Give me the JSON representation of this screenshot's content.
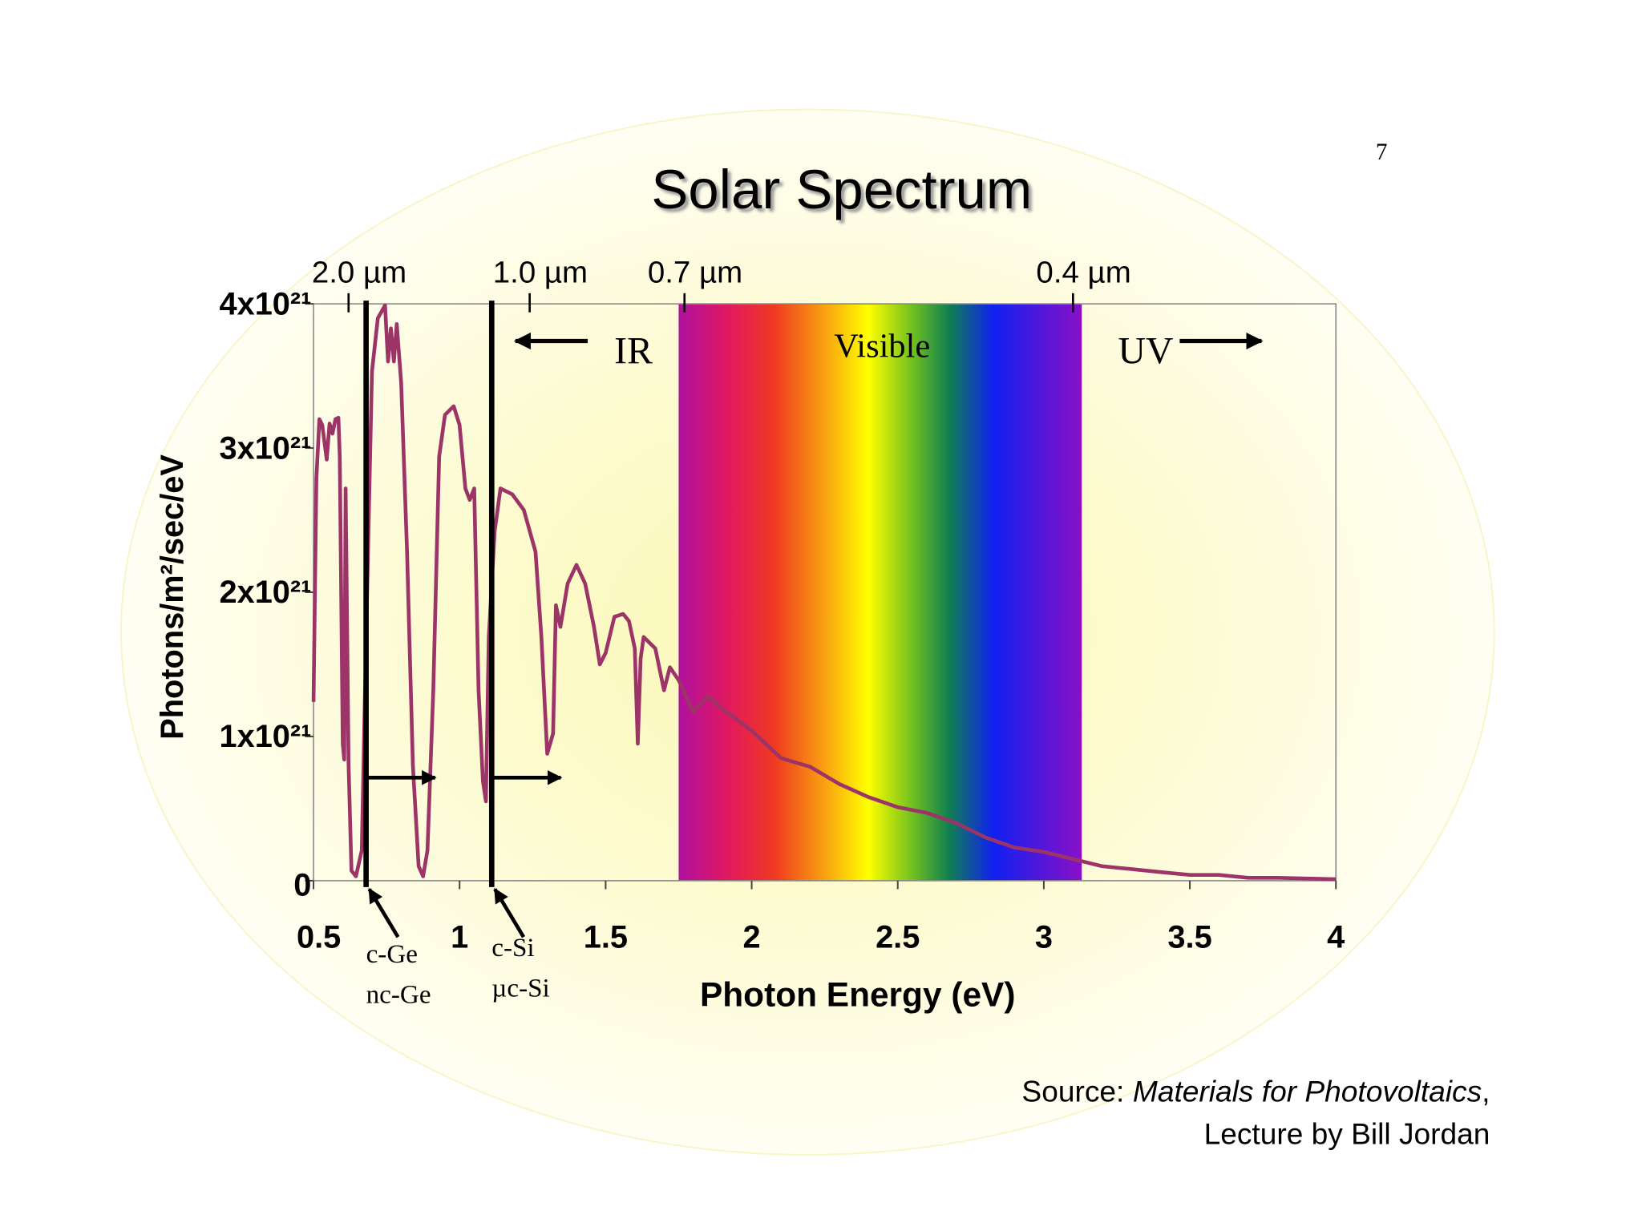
{
  "page_number": "7",
  "chart_data": {
    "type": "line",
    "title": "Solar Spectrum",
    "x_label": "Photon Energy (eV)",
    "y_label": "Photons/m²/sec/eV",
    "xlim": [
      0.5,
      4
    ],
    "xticks": [
      0.5,
      1,
      1.5,
      2,
      2.5,
      3,
      3.5,
      4
    ],
    "ylim": [
      0,
      4e+21
    ],
    "yticks": [
      0,
      {
        "value": 1e+21,
        "label": "1x10²¹"
      },
      {
        "value": 2e+21,
        "label": "2x10²¹"
      },
      {
        "value": 3e+21,
        "label": "3x10²¹"
      },
      {
        "value": 4e+21,
        "label": "4x10²¹"
      }
    ],
    "top_ticks": [
      {
        "value": 0.62,
        "label": "2.0 µm"
      },
      {
        "value": 1.24,
        "label": "1.0 µm"
      },
      {
        "value": 1.77,
        "label": "0.7 µm"
      },
      {
        "value": 3.1,
        "label": "0.4 µm"
      }
    ],
    "x": [
      0.5,
      0.51,
      0.52,
      0.53,
      0.545,
      0.555,
      0.565,
      0.575,
      0.585,
      0.59,
      0.6,
      0.605,
      0.61,
      0.62,
      0.63,
      0.645,
      0.665,
      0.68,
      0.7,
      0.72,
      0.745,
      0.755,
      0.765,
      0.775,
      0.785,
      0.8,
      0.82,
      0.84,
      0.86,
      0.875,
      0.89,
      0.91,
      0.93,
      0.95,
      0.98,
      1.0,
      1.02,
      1.035,
      1.05,
      1.065,
      1.08,
      1.09,
      1.1,
      1.12,
      1.14,
      1.18,
      1.22,
      1.26,
      1.28,
      1.3,
      1.32,
      1.33,
      1.345,
      1.37,
      1.4,
      1.43,
      1.46,
      1.48,
      1.5,
      1.53,
      1.56,
      1.58,
      1.6,
      1.61,
      1.62,
      1.63,
      1.67,
      1.7,
      1.72,
      1.75,
      1.8,
      1.85,
      1.9,
      2.0,
      2.1,
      2.2,
      2.3,
      2.4,
      2.5,
      2.6,
      2.7,
      2.8,
      2.9,
      3.0,
      3.1,
      3.2,
      3.3,
      3.4,
      3.5,
      3.6,
      3.7,
      3.8,
      3.9,
      4.0
    ],
    "series": [
      {
        "color": "#9c3468",
        "values": [
          1.24e+21,
          2.79e+21,
          3.2e+21,
          3.16e+21,
          2.92e+21,
          3.17e+21,
          3.1e+21,
          3.2e+21,
          3.21e+21,
          2.94e+21,
          9.5e+20,
          8.4e+20,
          2.72e+21,
          8e+20,
          7e+19,
          3e+19,
          2.1e+20,
          1.69e+21,
          3.53e+21,
          3.9e+21,
          3.99e+21,
          3.6e+21,
          3.83e+21,
          3.6e+21,
          3.86e+21,
          3.45e+21,
          2.28e+21,
          8e+20,
          1e+20,
          3e+19,
          2.1e+20,
          1.32e+21,
          2.94e+21,
          3.23e+21,
          3.29e+21,
          3.16e+21,
          2.72e+21,
          2.64e+21,
          2.72e+21,
          1.32e+21,
          6.9e+20,
          5.5e+20,
          1.69e+21,
          2.42e+21,
          2.72e+21,
          2.68e+21,
          2.57e+21,
          2.28e+21,
          1.69e+21,
          8.8e+20,
          1.02e+21,
          1.91e+21,
          1.76e+21,
          2.06e+21,
          2.19e+21,
          2.06e+21,
          1.76e+21,
          1.5e+21,
          1.58e+21,
          1.83e+21,
          1.85e+21,
          1.8e+21,
          1.61e+21,
          9.5e+20,
          1.54e+21,
          1.69e+21,
          1.61e+21,
          1.32e+21,
          1.48e+21,
          1.39e+21,
          1.17e+21,
          1.28e+21,
          1.19e+21,
          1.04e+21,
          8.5e+20,
          7.9e+20,
          6.7e+20,
          5.8e+20,
          5.1e+20,
          4.7e+20,
          4e+20,
          3e+20,
          2.3e+20,
          2e+20,
          1.5e+20,
          1e+20,
          8e+19,
          6e+19,
          4e+19,
          4e+19,
          2e+19,
          2e+19,
          1.5e+19,
          1e+19
        ]
      }
    ],
    "visible_range": [
      1.75,
      3.13
    ],
    "regions": [
      "IR",
      "Visible",
      "UV"
    ],
    "bandgaps": [
      {
        "x": 0.68,
        "labels": [
          "c-Ge",
          "nc-Ge"
        ]
      },
      {
        "x": 1.11,
        "labels": [
          "c-Si",
          "µc-Si"
        ]
      }
    ],
    "source": {
      "prefix": "Source:",
      "title": "Materials for Photovoltaics",
      "punct": ",",
      "line2": "Lecture by Bill Jordan"
    }
  }
}
